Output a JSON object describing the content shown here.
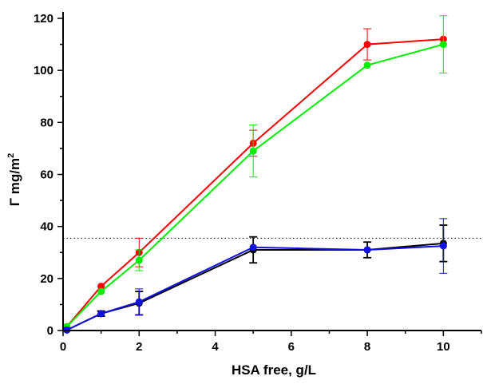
{
  "chart_data": {
    "type": "line",
    "xlabel": "HSA free, g/L",
    "ylabel": {
      "main": "Γ mg/m",
      "superscript": "2"
    },
    "xlim": [
      0,
      11
    ],
    "ylim": [
      0,
      120
    ],
    "x_ticks": [
      0,
      2,
      4,
      6,
      8,
      10
    ],
    "y_ticks": [
      0,
      20,
      40,
      60,
      80,
      100,
      120
    ],
    "grid": false,
    "reference_line": {
      "y": 35.5,
      "style": "dotted"
    },
    "series": [
      {
        "color": "#ff0000",
        "x": [
          0.1,
          1,
          2,
          5,
          8,
          10
        ],
        "y": [
          1.5,
          17,
          30,
          72,
          110,
          112
        ],
        "err": [
          0,
          0,
          5.5,
          5,
          6,
          0
        ]
      },
      {
        "color": "#00ee00",
        "x": [
          0.1,
          1,
          2,
          5,
          8,
          10
        ],
        "y": [
          1.5,
          15,
          27,
          69,
          102,
          110
        ],
        "err": [
          0,
          0,
          4,
          10,
          0,
          11
        ]
      },
      {
        "color": "#000000",
        "x": [
          0.1,
          1,
          2,
          5,
          8,
          10
        ],
        "y": [
          0.2,
          6.5,
          10.5,
          31,
          31,
          33.5
        ],
        "err": [
          0,
          1,
          4.5,
          5,
          3,
          7
        ]
      },
      {
        "color": "#1010e0",
        "x": [
          0.1,
          1,
          2,
          5,
          8,
          10
        ],
        "y": [
          0.2,
          6.5,
          11,
          32,
          31,
          32.5
        ],
        "err": [
          0,
          0,
          5,
          0,
          0,
          10.5
        ]
      }
    ]
  }
}
